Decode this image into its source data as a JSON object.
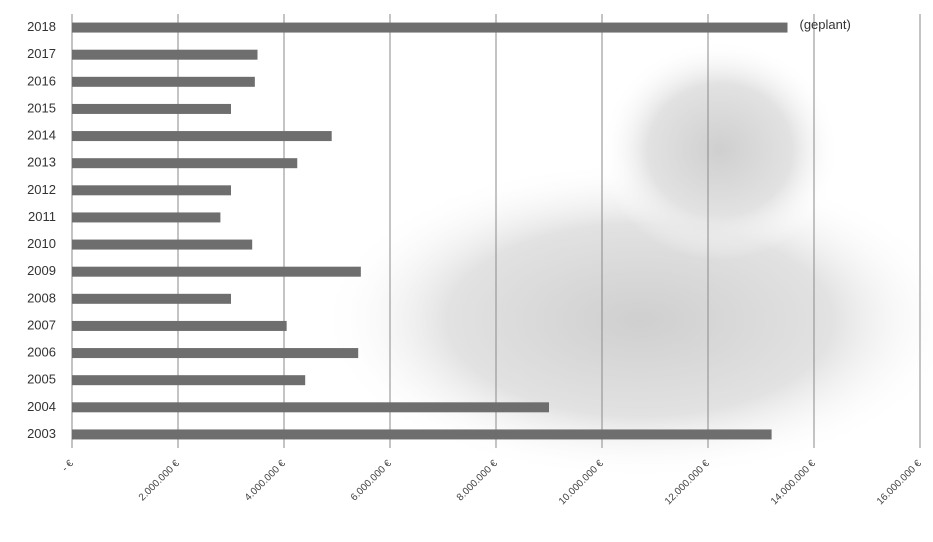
{
  "chart_data": {
    "type": "hbar",
    "categories": [
      "2018",
      "2017",
      "2016",
      "2015",
      "2014",
      "2013",
      "2012",
      "2011",
      "2010",
      "2009",
      "2008",
      "2007",
      "2006",
      "2005",
      "2004",
      "2003"
    ],
    "values": [
      13500000,
      3500000,
      3450000,
      3000000,
      4900000,
      4250000,
      3000000,
      2800000,
      3400000,
      5450000,
      3000000,
      4050000,
      5400000,
      4400000,
      9000000,
      13200000
    ],
    "color": "#6e6e6e",
    "annotation": "(geplant)",
    "xlim": [
      0,
      16000000
    ],
    "xticks": [
      {
        "value": 0,
        "label": "- €"
      },
      {
        "value": 2000000,
        "label": "2.000.000 €"
      },
      {
        "value": 4000000,
        "label": "4.000.000 €"
      },
      {
        "value": 6000000,
        "label": "6.000.000 €"
      },
      {
        "value": 8000000,
        "label": "8.000.000 €"
      },
      {
        "value": 10000000,
        "label": "10.000.000 €"
      },
      {
        "value": 12000000,
        "label": "12.000.000 €"
      },
      {
        "value": 14000000,
        "label": "14.000.000 €"
      },
      {
        "value": 16000000,
        "label": "16.000.000 €"
      }
    ],
    "grid": true
  }
}
